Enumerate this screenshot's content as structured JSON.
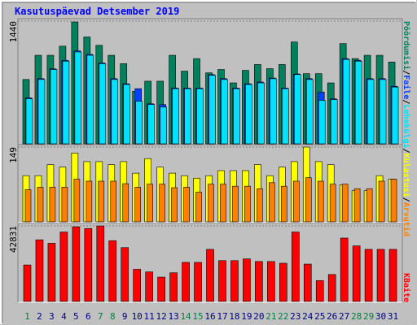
{
  "chart_data": [
    {
      "type": "bar",
      "title": "Kasutuspäevad Detsember 2019",
      "ylim": [
        0,
        1440
      ],
      "yticks": [
        1440
      ],
      "grid": true,
      "series": [
        {
          "name": "Pöördumisi",
          "color": "#00805c",
          "values": [
            755,
            1039,
            1039,
            1146,
            1430,
            1254,
            1156,
            1039,
            941,
            617,
            735,
            735,
            1039,
            853,
            1000,
            833,
            872,
            715,
            862,
            931,
            882,
            931,
            1195,
            823,
            823,
            715,
            1176,
            1000,
            1039,
            1039,
            960
          ]
        },
        {
          "name": "Faile",
          "color": "#0040ff",
          "values": [
            540,
            765,
            880,
            980,
            1090,
            1050,
            950,
            765,
            705,
            647,
            470,
            460,
            655,
            655,
            655,
            812,
            765,
            655,
            705,
            725,
            772,
            655,
            820,
            765,
            608,
            528,
            1000,
            980,
            765,
            765,
            675
          ]
        },
        {
          "name": "Lehekülgi",
          "color": "#00e0ff",
          "values": [
            529,
            755,
            872,
            970,
            1078,
            1039,
            941,
            755,
            696,
            500,
            461,
            431,
            647,
            647,
            647,
            804,
            755,
            647,
            696,
            715,
            764,
            647,
            813,
            755,
            510,
            519,
            990,
            970,
            755,
            755,
            666
          ]
        }
      ]
    },
    {
      "type": "bar",
      "ylim": [
        0,
        149
      ],
      "yticks": [
        149
      ],
      "grid": true,
      "series": [
        {
          "name": "Külastusi",
          "color": "#ffff00",
          "values": [
            92,
            92,
            114,
            109,
            137,
            120,
            120,
            114,
            120,
            97,
            126,
            109,
            97,
            92,
            87,
            92,
            102,
            102,
            102,
            114,
            92,
            109,
            120,
            149,
            120,
            114,
            74,
            62,
            62,
            92,
            85
          ]
        },
        {
          "name": "Arvutid",
          "color": "#ff8000",
          "values": [
            64,
            69,
            69,
            69,
            85,
            81,
            81,
            81,
            76,
            69,
            75,
            75,
            68,
            69,
            59,
            75,
            75,
            71,
            71,
            66,
            78,
            71,
            81,
            88,
            81,
            75,
            75,
            66,
            66,
            81,
            85
          ]
        }
      ]
    },
    {
      "type": "bar",
      "ylim": [
        0,
        42831
      ],
      "yticks": [
        42831
      ],
      "grid": true,
      "categories": [
        "1",
        "2",
        "3",
        "4",
        "5",
        "6",
        "7",
        "8",
        "9",
        "10",
        "11",
        "12",
        "13",
        "14",
        "15",
        "16",
        "17",
        "18",
        "19",
        "20",
        "21",
        "22",
        "23",
        "24",
        "25",
        "26",
        "27",
        "28",
        "29",
        "30",
        "31"
      ],
      "category_colors": [
        "#008040",
        "#000080",
        "#000080",
        "#000080",
        "#000080",
        "#000080",
        "#008040",
        "#008040",
        "#000080",
        "#000080",
        "#000080",
        "#000080",
        "#000080",
        "#008040",
        "#008040",
        "#000080",
        "#000080",
        "#000080",
        "#000080",
        "#000080",
        "#008040",
        "#008040",
        "#000080",
        "#000080",
        "#000080",
        "#000080",
        "#000080",
        "#008040",
        "#008040",
        "#000080",
        "#000080"
      ],
      "series": [
        {
          "name": "KBaite",
          "color": "#ff0000",
          "values": [
            20664,
            34932,
            32964,
            39360,
            42312,
            41328,
            42804,
            34440,
            30504,
            18204,
            16728,
            13776,
            16236,
            22140,
            22140,
            29520,
            23124,
            23124,
            24108,
            22632,
            22632,
            21648,
            39360,
            21156,
            11808,
            15252,
            35916,
            31488,
            29520,
            29520,
            29520
          ]
        }
      ]
    }
  ]
}
